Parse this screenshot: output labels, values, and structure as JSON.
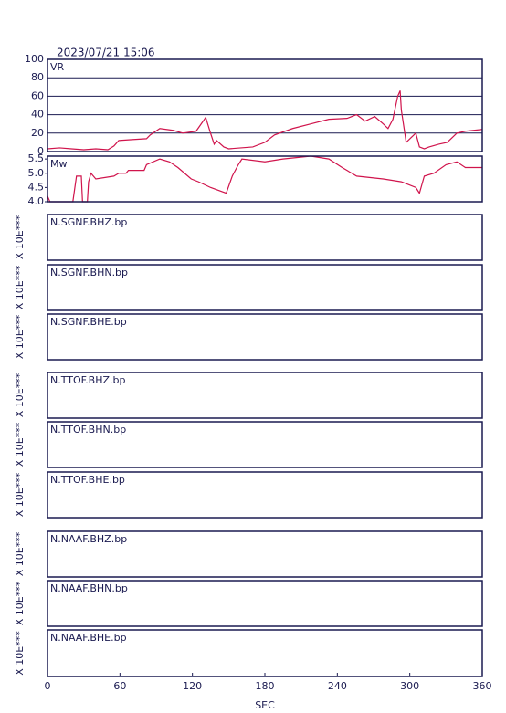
{
  "title": "2023/07/21 15:06",
  "chart_data": [
    {
      "type": "line",
      "label": "VR",
      "ylim": [
        0,
        100
      ],
      "yticks": [
        0,
        20,
        40,
        60,
        80,
        100
      ],
      "grid": true,
      "xlim": [
        0,
        360
      ],
      "x": [
        0,
        10,
        20,
        30,
        40,
        50,
        55,
        59,
        70,
        82,
        85,
        93,
        104,
        112,
        123,
        131,
        135,
        138,
        140,
        146,
        150,
        170,
        180,
        188,
        203,
        218,
        233,
        248,
        256,
        263,
        271,
        278,
        282,
        286,
        290,
        292,
        293,
        297,
        301,
        305,
        308,
        312,
        316,
        324,
        331,
        339,
        346,
        360
      ],
      "series": [
        {
          "color": "#d0144c",
          "values": [
            3,
            4,
            3,
            2,
            3,
            2,
            6,
            12,
            13,
            14,
            18,
            25,
            23,
            20,
            22,
            37,
            20,
            8,
            12,
            5,
            3,
            5,
            10,
            18,
            25,
            30,
            35,
            36,
            40,
            33,
            38,
            30,
            25,
            35,
            60,
            66,
            45,
            10,
            15,
            20,
            5,
            3,
            5,
            8,
            10,
            20,
            22,
            24
          ]
        }
      ]
    },
    {
      "type": "line",
      "label": "Mw",
      "ylim": [
        4.0,
        5.6
      ],
      "yticks": [
        {
          "value": 4.0,
          "label": "4.0"
        },
        4.5,
        {
          "value": 5.0,
          "label": "5.0"
        },
        5.5
      ],
      "grid": false,
      "xlim": [
        0,
        360
      ],
      "x": [
        0,
        2,
        21,
        24,
        28,
        29,
        33,
        34,
        36,
        40,
        55,
        59,
        65,
        67,
        80,
        82,
        93,
        101,
        108,
        119,
        125,
        135,
        148,
        153,
        158,
        161,
        180,
        195,
        218,
        233,
        244,
        256,
        278,
        293,
        305,
        308,
        312,
        320,
        330,
        339,
        346,
        360
      ],
      "series": [
        {
          "color": "#d0144c",
          "values": [
            4.2,
            4.0,
            4.0,
            4.9,
            4.9,
            4.0,
            4.0,
            4.7,
            5.0,
            4.8,
            4.9,
            5.0,
            5.0,
            5.1,
            5.1,
            5.3,
            5.5,
            5.4,
            5.2,
            4.8,
            4.7,
            4.5,
            4.3,
            4.9,
            5.3,
            5.5,
            5.4,
            5.5,
            5.6,
            5.5,
            5.2,
            4.9,
            4.8,
            4.7,
            4.5,
            4.3,
            4.9,
            5.0,
            5.3,
            5.4,
            5.2,
            5.2
          ]
        }
      ]
    },
    {
      "type": "waveform",
      "label": "N.SGNF.BHZ.bp",
      "ylabel": "X 10E***"
    },
    {
      "type": "waveform",
      "label": "N.SGNF.BHN.bp",
      "ylabel": "X 10E***"
    },
    {
      "type": "waveform",
      "label": "N.SGNF.BHE.bp",
      "ylabel": "X 10E***"
    },
    {
      "type": "waveform",
      "label": "N.TTOF.BHZ.bp",
      "ylabel": "X 10E***"
    },
    {
      "type": "waveform",
      "label": "N.TTOF.BHN.bp",
      "ylabel": "X 10E***"
    },
    {
      "type": "waveform",
      "label": "N.TTOF.BHE.bp",
      "ylabel": "X 10E***"
    },
    {
      "type": "waveform",
      "label": "N.NAAF.BHZ.bp",
      "ylabel": "X 10E***"
    },
    {
      "type": "waveform",
      "label": "N.NAAF.BHN.bp",
      "ylabel": "X 10E***"
    },
    {
      "type": "waveform",
      "label": "N.NAAF.BHE.bp",
      "ylabel": "X 10E***",
      "xlim": [
        0,
        360
      ],
      "xticks": [
        0,
        60,
        120,
        180,
        240,
        300,
        360
      ],
      "xlabel": "SEC"
    }
  ]
}
